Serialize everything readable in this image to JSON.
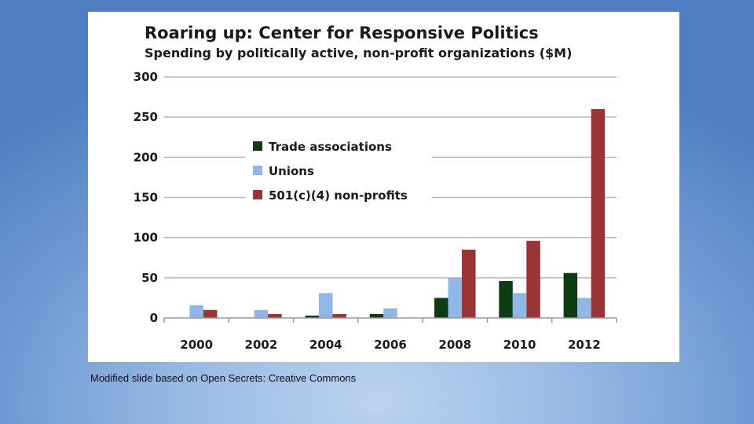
{
  "chart_data": {
    "type": "bar",
    "title": "Roaring up: Center for Responsive Politics",
    "subtitle": "Spending by politically active, non-profit organizations ($M)",
    "categories": [
      "2000",
      "2002",
      "2004",
      "2006",
      "2008",
      "2010",
      "2012"
    ],
    "series": [
      {
        "name": "Trade associations",
        "color": "#0d3b12",
        "values": [
          0,
          0,
          3,
          5,
          25,
          46,
          56
        ]
      },
      {
        "name": "Unions",
        "color": "#8fb7e8",
        "values": [
          16,
          10,
          31,
          12,
          50,
          31,
          25
        ]
      },
      {
        "name": "501(c)(4) non-profits",
        "color": "#9b3434",
        "values": [
          10,
          5,
          5,
          0,
          85,
          96,
          260
        ]
      }
    ],
    "ylim": [
      0,
      300
    ],
    "yticks": [
      "0",
      "50",
      "100",
      "150",
      "200",
      "250",
      "300"
    ],
    "grid": true,
    "legend_position": "top-left"
  },
  "caption": "Modified slide based on Open Secrets: Creative Commons"
}
